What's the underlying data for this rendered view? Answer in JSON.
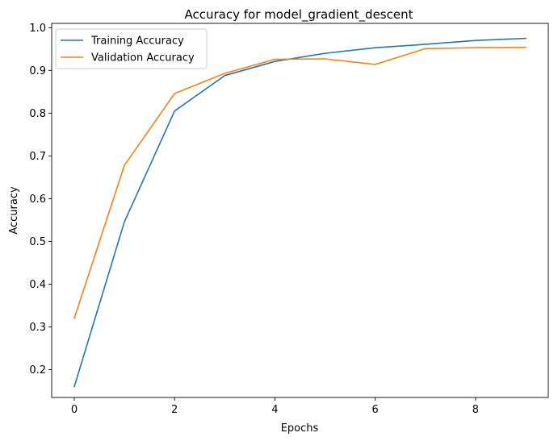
{
  "chart_data": {
    "type": "line",
    "title": "Accuracy for model_gradient_descent",
    "xlabel": "Epochs",
    "ylabel": "Accuracy",
    "x": [
      0,
      1,
      2,
      3,
      4,
      5,
      6,
      7,
      8,
      9
    ],
    "xlim": [
      -0.45,
      9.45
    ],
    "ylim": [
      0.135,
      1.01
    ],
    "xticks": [
      0,
      2,
      4,
      6,
      8
    ],
    "yticks": [
      0.2,
      0.3,
      0.4,
      0.5,
      0.6,
      0.7,
      0.8,
      0.9,
      1.0
    ],
    "xtick_labels": [
      "0",
      "2",
      "4",
      "6",
      "8"
    ],
    "ytick_labels": [
      "0.2",
      "0.3",
      "0.4",
      "0.5",
      "0.6",
      "0.7",
      "0.8",
      "0.9",
      "1.0"
    ],
    "grid": false,
    "legend_position": "top-left",
    "series": [
      {
        "name": "Training Accuracy",
        "color": "#1f77b4",
        "values": [
          0.16,
          0.546,
          0.805,
          0.888,
          0.921,
          0.94,
          0.953,
          0.961,
          0.97,
          0.975
        ]
      },
      {
        "name": "Validation Accuracy",
        "color": "#ff7f0e",
        "values": [
          0.32,
          0.678,
          0.846,
          0.893,
          0.926,
          0.927,
          0.914,
          0.951,
          0.953,
          0.954
        ]
      }
    ]
  }
}
